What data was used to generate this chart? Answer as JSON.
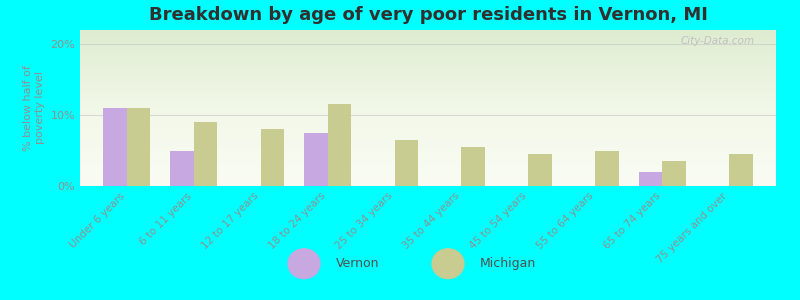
{
  "title": "Breakdown by age of very poor residents in Vernon, MI",
  "ylabel": "% below half of\npoverty level",
  "categories": [
    "Under 6 years",
    "6 to 11 years",
    "12 to 17 years",
    "18 to 24 years",
    "25 to 34 years",
    "35 to 44 years",
    "45 to 54 years",
    "55 to 64 years",
    "65 to 74 years",
    "75 years and over"
  ],
  "vernon_values": [
    11.0,
    5.0,
    0.0,
    7.5,
    0.0,
    0.0,
    0.0,
    0.0,
    2.0,
    0.0
  ],
  "michigan_values": [
    11.0,
    9.0,
    8.0,
    11.5,
    6.5,
    5.5,
    4.5,
    5.0,
    3.5,
    4.5
  ],
  "vernon_color": "#c8a8e0",
  "michigan_color": "#c8cc90",
  "background_color": "#00ffff",
  "ylim": [
    0,
    22
  ],
  "yticks": [
    0,
    10,
    20
  ],
  "ytick_labels": [
    "0%",
    "10%",
    "20%"
  ],
  "bar_width": 0.35,
  "title_fontsize": 13,
  "legend_labels": [
    "Vernon",
    "Michigan"
  ],
  "watermark": "City-Data.com"
}
